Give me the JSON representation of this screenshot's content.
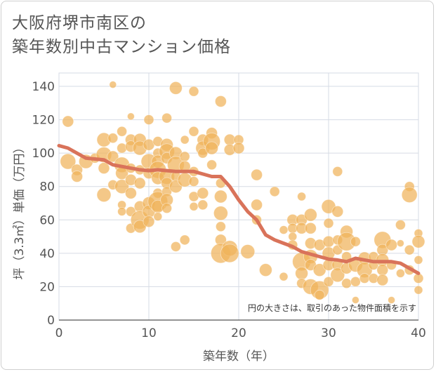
{
  "title_lines": [
    "大阪府堺市南区の",
    "築年数別中古マンション価格"
  ],
  "chart_data": {
    "type": "scatter",
    "title": "大阪府堺市南区の築年数別中古マンション価格",
    "xlabel": "築年数（年）",
    "ylabel": "坪（3.3㎡）単価（万円）",
    "xlim": [
      0,
      40
    ],
    "ylim": [
      0,
      148
    ],
    "xticks": [
      0,
      10,
      20,
      30,
      40
    ],
    "yticks": [
      0,
      20,
      40,
      60,
      80,
      100,
      120,
      140
    ],
    "grid": true,
    "annotation": "円の大きさは、取引のあった物件面積を示す",
    "colors": {
      "bubble": "#f0b35a",
      "trend": "#d9735a"
    },
    "trend_line": {
      "x": [
        0,
        1,
        2,
        3,
        4,
        5,
        6,
        7,
        8,
        9,
        10,
        11,
        12,
        13,
        14,
        15,
        16,
        17,
        18,
        19,
        20,
        21,
        22,
        23,
        24,
        25,
        26,
        27,
        28,
        29,
        30,
        31,
        32,
        33,
        34,
        35,
        36,
        37,
        38,
        39,
        40
      ],
      "y": [
        104.5,
        103,
        100,
        97,
        96.5,
        96,
        93,
        92,
        91,
        90,
        89.5,
        90,
        89.5,
        89,
        89,
        89,
        87.5,
        86,
        86,
        80,
        72,
        65,
        60,
        51,
        48,
        46,
        44,
        41,
        39.5,
        38,
        36.5,
        36,
        35,
        37,
        36,
        35,
        35,
        35,
        34,
        31,
        28
      ]
    },
    "points": [
      {
        "x": 1,
        "y": 119,
        "s": 8
      },
      {
        "x": 1,
        "y": 95,
        "s": 11
      },
      {
        "x": 2,
        "y": 90,
        "s": 8
      },
      {
        "x": 2,
        "y": 86,
        "s": 8
      },
      {
        "x": 3,
        "y": 95,
        "s": 10
      },
      {
        "x": 4,
        "y": 97,
        "s": 7
      },
      {
        "x": 5,
        "y": 108,
        "s": 10
      },
      {
        "x": 5,
        "y": 99,
        "s": 11
      },
      {
        "x": 5,
        "y": 91,
        "s": 8
      },
      {
        "x": 5,
        "y": 75,
        "s": 10
      },
      {
        "x": 6,
        "y": 141,
        "s": 5
      },
      {
        "x": 6,
        "y": 109,
        "s": 7
      },
      {
        "x": 6,
        "y": 98,
        "s": 8
      },
      {
        "x": 6,
        "y": 81,
        "s": 7
      },
      {
        "x": 7,
        "y": 113,
        "s": 7
      },
      {
        "x": 7,
        "y": 103,
        "s": 7
      },
      {
        "x": 7,
        "y": 93,
        "s": 11
      },
      {
        "x": 7,
        "y": 88,
        "s": 9
      },
      {
        "x": 7,
        "y": 80,
        "s": 10
      },
      {
        "x": 7,
        "y": 69,
        "s": 6
      },
      {
        "x": 7,
        "y": 65,
        "s": 6
      },
      {
        "x": 8,
        "y": 122,
        "s": 5
      },
      {
        "x": 8,
        "y": 108,
        "s": 8
      },
      {
        "x": 8,
        "y": 104,
        "s": 8
      },
      {
        "x": 8,
        "y": 91,
        "s": 7
      },
      {
        "x": 8,
        "y": 84,
        "s": 8
      },
      {
        "x": 8,
        "y": 76,
        "s": 8
      },
      {
        "x": 8,
        "y": 65,
        "s": 7
      },
      {
        "x": 8,
        "y": 55,
        "s": 7
      },
      {
        "x": 9,
        "y": 108,
        "s": 9
      },
      {
        "x": 9,
        "y": 103,
        "s": 10
      },
      {
        "x": 9,
        "y": 90,
        "s": 7
      },
      {
        "x": 9,
        "y": 82,
        "s": 8
      },
      {
        "x": 9,
        "y": 68,
        "s": 8
      },
      {
        "x": 9,
        "y": 60,
        "s": 13
      },
      {
        "x": 9,
        "y": 56,
        "s": 9
      },
      {
        "x": 10,
        "y": 120,
        "s": 7
      },
      {
        "x": 10,
        "y": 105,
        "s": 8
      },
      {
        "x": 10,
        "y": 95,
        "s": 11
      },
      {
        "x": 10,
        "y": 88,
        "s": 8
      },
      {
        "x": 10,
        "y": 70,
        "s": 9
      },
      {
        "x": 10,
        "y": 65,
        "s": 9
      },
      {
        "x": 10,
        "y": 59,
        "s": 8
      },
      {
        "x": 11,
        "y": 107,
        "s": 7
      },
      {
        "x": 11,
        "y": 100,
        "s": 7
      },
      {
        "x": 11,
        "y": 95,
        "s": 9
      },
      {
        "x": 11,
        "y": 90,
        "s": 12
      },
      {
        "x": 11,
        "y": 85,
        "s": 9
      },
      {
        "x": 11,
        "y": 76,
        "s": 7
      },
      {
        "x": 11,
        "y": 71,
        "s": 14
      },
      {
        "x": 11,
        "y": 68,
        "s": 9
      },
      {
        "x": 11,
        "y": 62,
        "s": 6
      },
      {
        "x": 12,
        "y": 121,
        "s": 7
      },
      {
        "x": 12,
        "y": 105,
        "s": 9
      },
      {
        "x": 12,
        "y": 101,
        "s": 11
      },
      {
        "x": 12,
        "y": 97,
        "s": 8
      },
      {
        "x": 12,
        "y": 86,
        "s": 11
      },
      {
        "x": 12,
        "y": 82,
        "s": 8
      },
      {
        "x": 12,
        "y": 77,
        "s": 7
      },
      {
        "x": 12,
        "y": 72,
        "s": 9
      },
      {
        "x": 12,
        "y": 67,
        "s": 7
      },
      {
        "x": 13,
        "y": 139,
        "s": 9
      },
      {
        "x": 13,
        "y": 100,
        "s": 9
      },
      {
        "x": 13,
        "y": 93,
        "s": 12
      },
      {
        "x": 13,
        "y": 86,
        "s": 7
      },
      {
        "x": 13,
        "y": 80,
        "s": 9
      },
      {
        "x": 13,
        "y": 44,
        "s": 7
      },
      {
        "x": 14,
        "y": 108,
        "s": 6
      },
      {
        "x": 14,
        "y": 98,
        "s": 7
      },
      {
        "x": 14,
        "y": 92,
        "s": 8
      },
      {
        "x": 14,
        "y": 84,
        "s": 10
      },
      {
        "x": 14,
        "y": 48,
        "s": 7
      },
      {
        "x": 15,
        "y": 137,
        "s": 7
      },
      {
        "x": 15,
        "y": 113,
        "s": 7
      },
      {
        "x": 15,
        "y": 89,
        "s": 7
      },
      {
        "x": 15,
        "y": 83,
        "s": 7
      },
      {
        "x": 15,
        "y": 68,
        "s": 6
      },
      {
        "x": 15,
        "y": 74,
        "s": 7
      },
      {
        "x": 16,
        "y": 108,
        "s": 8
      },
      {
        "x": 16,
        "y": 103,
        "s": 10
      },
      {
        "x": 16,
        "y": 100,
        "s": 7
      },
      {
        "x": 16,
        "y": 76,
        "s": 8
      },
      {
        "x": 16,
        "y": 69,
        "s": 7
      },
      {
        "x": 17,
        "y": 112,
        "s": 8
      },
      {
        "x": 17,
        "y": 107,
        "s": 12
      },
      {
        "x": 17,
        "y": 103,
        "s": 9
      },
      {
        "x": 17,
        "y": 93,
        "s": 7
      },
      {
        "x": 18,
        "y": 131,
        "s": 8
      },
      {
        "x": 18,
        "y": 82,
        "s": 7
      },
      {
        "x": 18,
        "y": 74,
        "s": 9
      },
      {
        "x": 18,
        "y": 64,
        "s": 10
      },
      {
        "x": 18,
        "y": 56,
        "s": 7
      },
      {
        "x": 18,
        "y": 48,
        "s": 8
      },
      {
        "x": 18,
        "y": 40,
        "s": 14
      },
      {
        "x": 19,
        "y": 108,
        "s": 8
      },
      {
        "x": 19,
        "y": 102,
        "s": 8
      },
      {
        "x": 19,
        "y": 43,
        "s": 11
      },
      {
        "x": 19,
        "y": 40,
        "s": 13
      },
      {
        "x": 20,
        "y": 108,
        "s": 7
      },
      {
        "x": 20,
        "y": 103,
        "s": 8
      },
      {
        "x": 21,
        "y": 41,
        "s": 10
      },
      {
        "x": 22,
        "y": 87,
        "s": 8
      },
      {
        "x": 22,
        "y": 69,
        "s": 8
      },
      {
        "x": 22,
        "y": 60,
        "s": 7
      },
      {
        "x": 23,
        "y": 30,
        "s": 9
      },
      {
        "x": 24,
        "y": 77,
        "s": 7
      },
      {
        "x": 25,
        "y": 54,
        "s": 6
      },
      {
        "x": 25,
        "y": 26,
        "s": 6
      },
      {
        "x": 26,
        "y": 60,
        "s": 8
      },
      {
        "x": 26,
        "y": 55,
        "s": 7
      },
      {
        "x": 26,
        "y": 50,
        "s": 6
      },
      {
        "x": 26,
        "y": 45,
        "s": 7
      },
      {
        "x": 27,
        "y": 74,
        "s": 6
      },
      {
        "x": 27,
        "y": 60,
        "s": 8
      },
      {
        "x": 27,
        "y": 55,
        "s": 8
      },
      {
        "x": 27,
        "y": 35,
        "s": 13
      },
      {
        "x": 27,
        "y": 28,
        "s": 9
      },
      {
        "x": 27,
        "y": 22,
        "s": 7
      },
      {
        "x": 28,
        "y": 63,
        "s": 9
      },
      {
        "x": 28,
        "y": 55,
        "s": 8
      },
      {
        "x": 28,
        "y": 46,
        "s": 8
      },
      {
        "x": 28,
        "y": 38,
        "s": 10
      },
      {
        "x": 28,
        "y": 33,
        "s": 8
      },
      {
        "x": 28,
        "y": 20,
        "s": 11
      },
      {
        "x": 29,
        "y": 45,
        "s": 8
      },
      {
        "x": 29,
        "y": 30,
        "s": 9
      },
      {
        "x": 29,
        "y": 18,
        "s": 13
      },
      {
        "x": 29,
        "y": 15,
        "s": 7
      },
      {
        "x": 30,
        "y": 68,
        "s": 10
      },
      {
        "x": 30,
        "y": 58,
        "s": 7
      },
      {
        "x": 30,
        "y": 47,
        "s": 8
      },
      {
        "x": 30,
        "y": 40,
        "s": 9
      },
      {
        "x": 30,
        "y": 33,
        "s": 8
      },
      {
        "x": 30,
        "y": 23,
        "s": 7
      },
      {
        "x": 31,
        "y": 89,
        "s": 7
      },
      {
        "x": 31,
        "y": 65,
        "s": 8
      },
      {
        "x": 31,
        "y": 48,
        "s": 7
      },
      {
        "x": 31,
        "y": 42,
        "s": 7
      },
      {
        "x": 31,
        "y": 33,
        "s": 8
      },
      {
        "x": 31,
        "y": 27,
        "s": 10
      },
      {
        "x": 32,
        "y": 53,
        "s": 9
      },
      {
        "x": 32,
        "y": 47,
        "s": 13
      },
      {
        "x": 32,
        "y": 38,
        "s": 7
      },
      {
        "x": 32,
        "y": 31,
        "s": 8
      },
      {
        "x": 32,
        "y": 22,
        "s": 7
      },
      {
        "x": 33,
        "y": 47,
        "s": 7
      },
      {
        "x": 33,
        "y": 33,
        "s": 10
      },
      {
        "x": 33,
        "y": 23,
        "s": 7
      },
      {
        "x": 33,
        "y": 12,
        "s": 5
      },
      {
        "x": 34,
        "y": 37,
        "s": 9
      },
      {
        "x": 34,
        "y": 30,
        "s": 11
      },
      {
        "x": 34,
        "y": 25,
        "s": 7
      },
      {
        "x": 35,
        "y": 38,
        "s": 7
      },
      {
        "x": 35,
        "y": 33,
        "s": 7
      },
      {
        "x": 35,
        "y": 25,
        "s": 7
      },
      {
        "x": 36,
        "y": 48,
        "s": 12
      },
      {
        "x": 36,
        "y": 42,
        "s": 8
      },
      {
        "x": 36,
        "y": 36,
        "s": 9
      },
      {
        "x": 36,
        "y": 30,
        "s": 8
      },
      {
        "x": 36,
        "y": 24,
        "s": 8
      },
      {
        "x": 37,
        "y": 45,
        "s": 8
      },
      {
        "x": 37,
        "y": 33,
        "s": 7
      },
      {
        "x": 37,
        "y": 12,
        "s": 5
      },
      {
        "x": 38,
        "y": 57,
        "s": 7
      },
      {
        "x": 38,
        "y": 46,
        "s": 5
      },
      {
        "x": 38,
        "y": 28,
        "s": 6
      },
      {
        "x": 39,
        "y": 80,
        "s": 7
      },
      {
        "x": 39,
        "y": 75,
        "s": 11
      },
      {
        "x": 39,
        "y": 42,
        "s": 7
      },
      {
        "x": 39,
        "y": 30,
        "s": 7
      },
      {
        "x": 40,
        "y": 52,
        "s": 6
      },
      {
        "x": 40,
        "y": 47,
        "s": 9
      },
      {
        "x": 40,
        "y": 36,
        "s": 6
      },
      {
        "x": 40,
        "y": 25,
        "s": 7
      },
      {
        "x": 40,
        "y": 18,
        "s": 6
      }
    ]
  }
}
